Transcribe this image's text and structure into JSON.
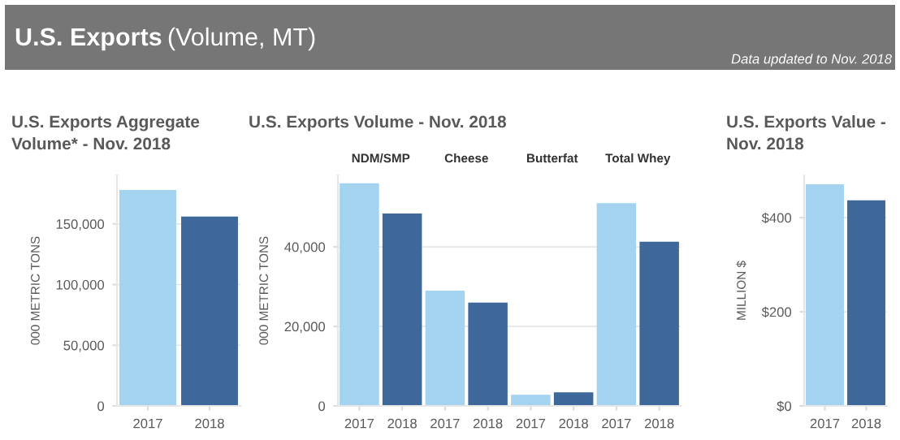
{
  "chart_data": [
    {
      "type": "other",
      "title": "U.S. Exports",
      "subtitle": "(Volume, MT)",
      "annotations": [
        "Data updated to Nov. 2018"
      ]
    },
    {
      "type": "bar",
      "title": "U.S. Exports Aggregate\nVolume* - Nov. 2018",
      "ylabel": "000 METRIC TONS",
      "categories": [
        "2017",
        "2018"
      ],
      "values": [
        178000,
        156000
      ],
      "colors": [
        "#a3d3ef",
        "#3d6899"
      ],
      "ylim": [
        0,
        190000
      ],
      "yticks": [
        {
          "value": 0,
          "label": "0"
        },
        {
          "value": 50000,
          "label": "50,000"
        },
        {
          "value": 100000,
          "label": "100,000"
        },
        {
          "value": 150000,
          "label": "150,000"
        }
      ],
      "grid": "y"
    },
    {
      "type": "bar",
      "title": "U.S. Exports Volume - Nov. 2018",
      "ylabel": "000 METRIC TONS",
      "categories": [
        "2017",
        "2018",
        "2017",
        "2018",
        "2017",
        "2018",
        "2017",
        "2018"
      ],
      "values": [
        56000,
        48400,
        29000,
        26000,
        2800,
        3400,
        51000,
        41300
      ],
      "colors": [
        "#a3d3ef",
        "#3d6899",
        "#a3d3ef",
        "#3d6899",
        "#a3d3ef",
        "#3d6899",
        "#a3d3ef",
        "#3d6899"
      ],
      "annotations": [
        "NDM/SMP",
        "Cheese",
        "Butterfat",
        "Total Whey"
      ],
      "ylim": [
        0,
        58000
      ],
      "yticks": [
        {
          "value": 0,
          "label": "0"
        },
        {
          "value": 20000,
          "label": "20,000"
        },
        {
          "value": 40000,
          "label": "40,000"
        }
      ],
      "grid": "y"
    },
    {
      "type": "bar",
      "title": "U.S. Exports Value -\nNov. 2018",
      "ylabel": "MILLION $",
      "categories": [
        "2017",
        "2018"
      ],
      "values": [
        471,
        437
      ],
      "colors": [
        "#a3d3ef",
        "#3d6899"
      ],
      "ylim": [
        0,
        490
      ],
      "yticks": [
        {
          "value": 0,
          "label": "$0"
        },
        {
          "value": 200,
          "label": "$200"
        },
        {
          "value": 400,
          "label": "$400"
        }
      ],
      "grid": "y"
    }
  ]
}
